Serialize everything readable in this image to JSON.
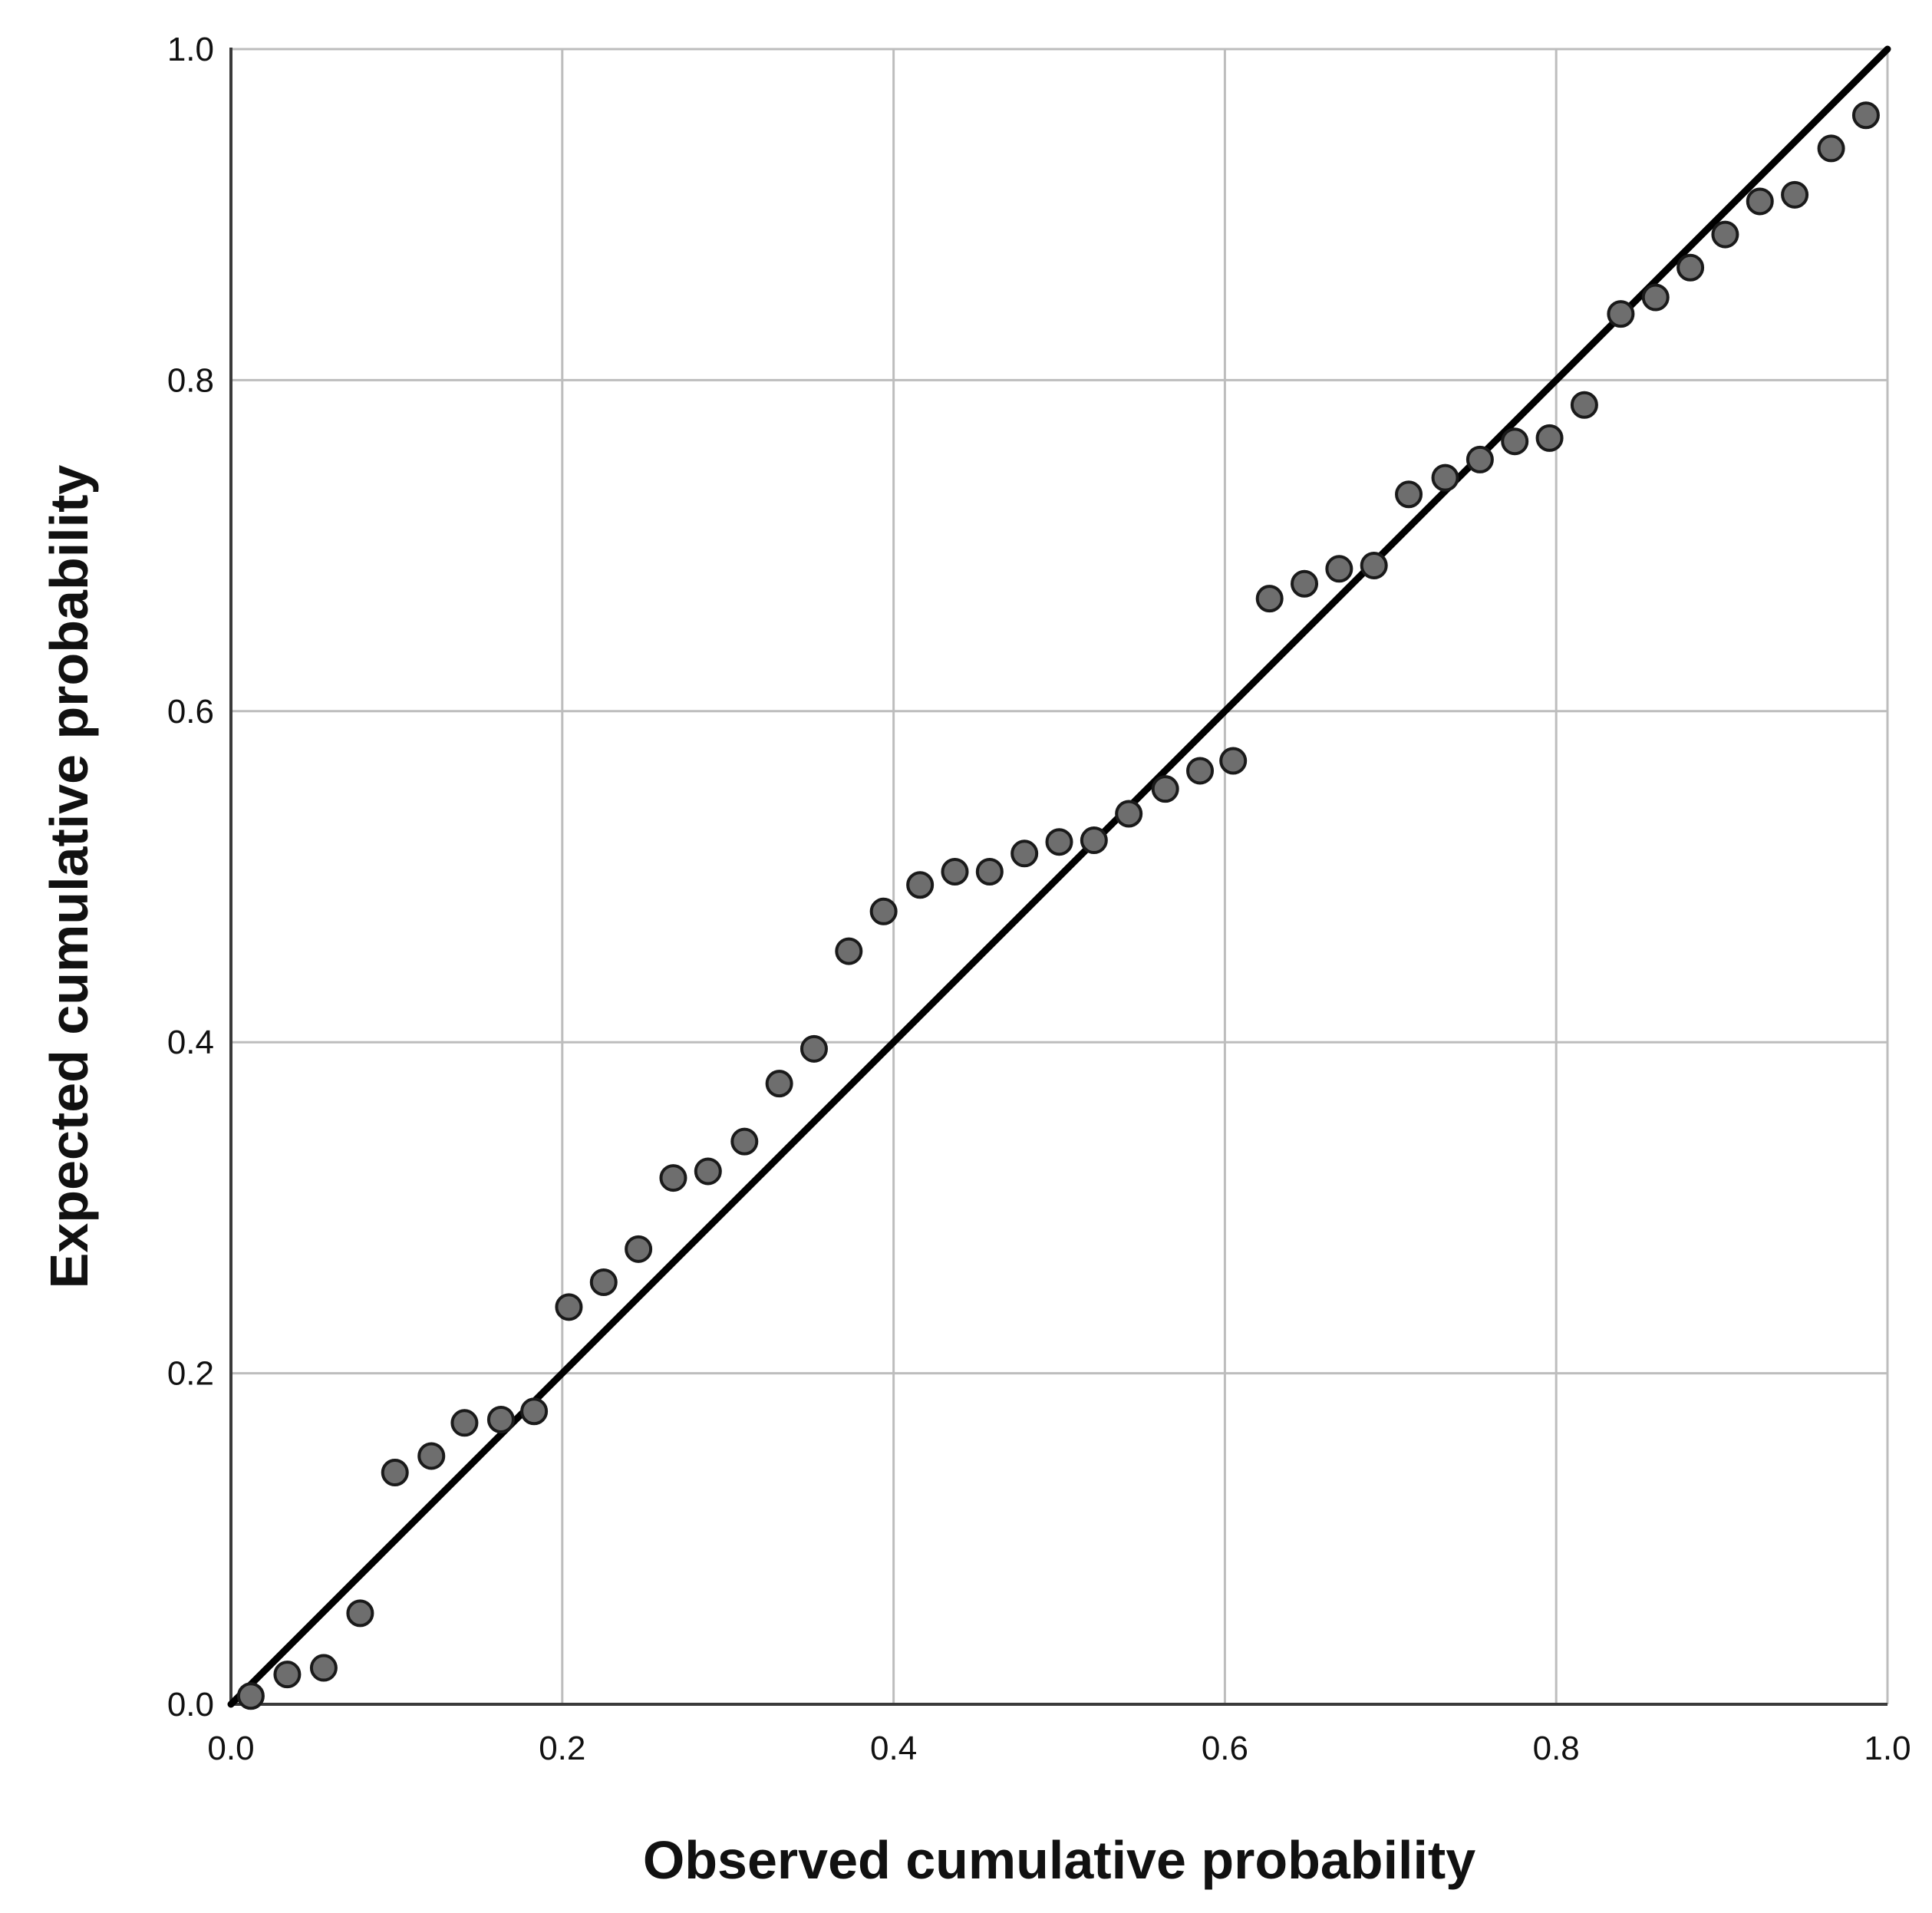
{
  "chart_data": {
    "type": "scatter",
    "title": "",
    "xlabel": "Observed cumulative probability",
    "ylabel": "Expected cumulative probability",
    "xlim": [
      0.0,
      1.0
    ],
    "ylim": [
      0.0,
      1.0
    ],
    "xticks": [
      "0.0",
      "0.2",
      "0.4",
      "0.6",
      "0.8",
      "1.0"
    ],
    "yticks": [
      "0.0",
      "0.2",
      "0.4",
      "0.6",
      "0.8",
      "1.0"
    ],
    "grid": true,
    "legend": "none",
    "reference_line": {
      "from": [
        0.0,
        0.0
      ],
      "to": [
        1.0,
        1.0
      ],
      "color": "#000000"
    },
    "marker_color": "#6e6e6e",
    "marker_edge_color": "#1a1a1a",
    "series": [
      {
        "points": [
          [
            0.012,
            0.005
          ],
          [
            0.034,
            0.018
          ],
          [
            0.056,
            0.022
          ],
          [
            0.078,
            0.055
          ],
          [
            0.099,
            0.14
          ],
          [
            0.121,
            0.15
          ],
          [
            0.141,
            0.17
          ],
          [
            0.163,
            0.172
          ],
          [
            0.183,
            0.177
          ],
          [
            0.204,
            0.24
          ],
          [
            0.225,
            0.255
          ],
          [
            0.246,
            0.275
          ],
          [
            0.267,
            0.318
          ],
          [
            0.288,
            0.322
          ],
          [
            0.31,
            0.34
          ],
          [
            0.331,
            0.375
          ],
          [
            0.352,
            0.396
          ],
          [
            0.373,
            0.455
          ],
          [
            0.394,
            0.479
          ],
          [
            0.416,
            0.495
          ],
          [
            0.437,
            0.503
          ],
          [
            0.458,
            0.503
          ],
          [
            0.479,
            0.514
          ],
          [
            0.5,
            0.521
          ],
          [
            0.521,
            0.522
          ],
          [
            0.542,
            0.538
          ],
          [
            0.564,
            0.553
          ],
          [
            0.585,
            0.564
          ],
          [
            0.605,
            0.57
          ],
          [
            0.627,
            0.668
          ],
          [
            0.648,
            0.677
          ],
          [
            0.669,
            0.686
          ],
          [
            0.69,
            0.688
          ],
          [
            0.711,
            0.731
          ],
          [
            0.733,
            0.741
          ],
          [
            0.754,
            0.752
          ],
          [
            0.775,
            0.763
          ],
          [
            0.796,
            0.765
          ],
          [
            0.817,
            0.785
          ],
          [
            0.839,
            0.84
          ],
          [
            0.86,
            0.85
          ],
          [
            0.881,
            0.868
          ],
          [
            0.902,
            0.888
          ],
          [
            0.923,
            0.908
          ],
          [
            0.944,
            0.912
          ],
          [
            0.966,
            0.94
          ],
          [
            0.987,
            0.96
          ]
        ]
      }
    ]
  }
}
